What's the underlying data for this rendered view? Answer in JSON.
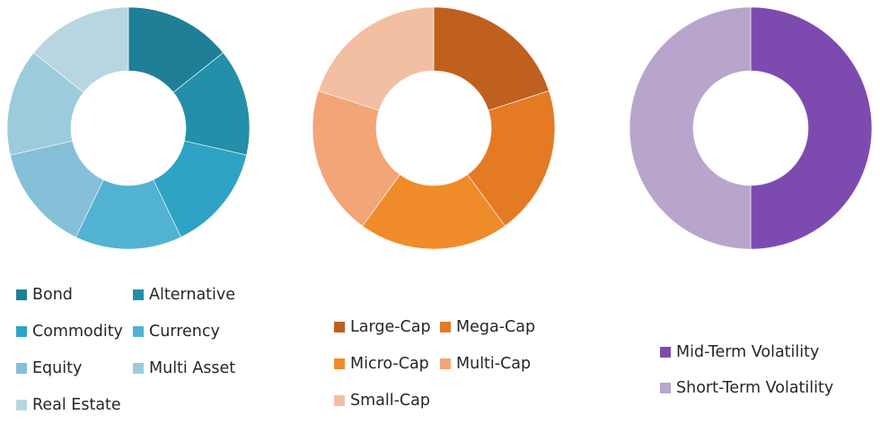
{
  "chart_data": [
    {
      "type": "pie",
      "donut": true,
      "categories": [
        "Bond",
        "Alternative",
        "Commodity",
        "Currency",
        "Equity",
        "Multi Asset",
        "Real Estate"
      ],
      "values": [
        1,
        1,
        1,
        1,
        1,
        1,
        1
      ],
      "colors": [
        "#1e7f97",
        "#238fa8",
        "#2ea3c6",
        "#52b2d2",
        "#86bfd8",
        "#9ccbdc",
        "#b8d6e2"
      ],
      "legend": [
        {
          "label": "Bond",
          "color": "#1e7f97"
        },
        {
          "label": "Alternative",
          "color": "#238fa8"
        },
        {
          "label": "Commodity",
          "color": "#2ea3c6"
        },
        {
          "label": "Currency",
          "color": "#52b2d2"
        },
        {
          "label": "Equity",
          "color": "#86bfd8"
        },
        {
          "label": "Multi Asset",
          "color": "#9ccbdc"
        },
        {
          "label": "Real Estate",
          "color": "#b8d6e2"
        }
      ]
    },
    {
      "type": "pie",
      "donut": true,
      "categories": [
        "Large-Cap",
        "Mega-Cap",
        "Micro-Cap",
        "Multi-Cap",
        "Small-Cap"
      ],
      "values": [
        1,
        1,
        1,
        1,
        1
      ],
      "colors": [
        "#c0601e",
        "#e57a25",
        "#f08b2a",
        "#f2a577",
        "#f3bfa3"
      ],
      "legend": [
        {
          "label": "Large-Cap",
          "color": "#c0601e"
        },
        {
          "label": "Mega-Cap",
          "color": "#e57a25"
        },
        {
          "label": "Micro-Cap",
          "color": "#f08b2a"
        },
        {
          "label": "Multi-Cap",
          "color": "#f2a577"
        },
        {
          "label": "Small-Cap",
          "color": "#f3bfa3"
        }
      ]
    },
    {
      "type": "pie",
      "donut": true,
      "categories": [
        "Mid-Term Volatility",
        "Short-Term Volatility"
      ],
      "values": [
        1,
        1
      ],
      "colors": [
        "#7d4bb0",
        "#b8a5cc"
      ],
      "legend": [
        {
          "label": "Mid-Term Volatility",
          "color": "#7d4bb0"
        },
        {
          "label": "Short-Term Volatility",
          "color": "#b8a5cc"
        }
      ]
    }
  ]
}
